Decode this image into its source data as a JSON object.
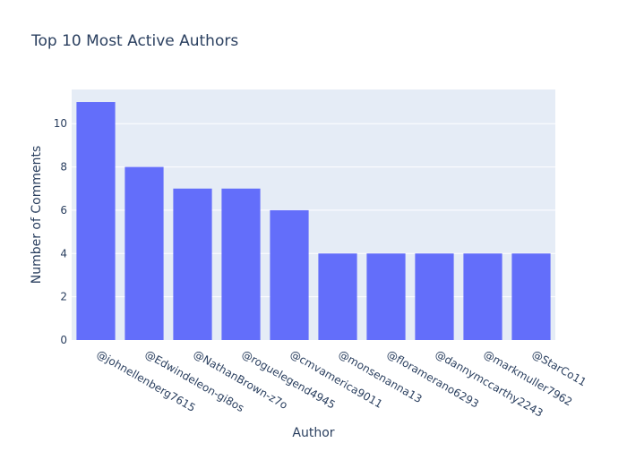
{
  "chart_data": {
    "type": "bar",
    "title": "Top 10 Most Active Authors",
    "xlabel": "Author",
    "ylabel": "Number of Comments",
    "categories": [
      "@johnellenberg7615",
      "@Edwindeleon-gi8os",
      "@NathanBrown-z7o",
      "@roguelegend4945",
      "@cmvamerica9011",
      "@monsenanna13",
      "@floramerano6293",
      "@dannymccarthy2243",
      "@markmuller7962",
      "@StarCo11"
    ],
    "values": [
      11,
      8,
      7,
      7,
      6,
      4,
      4,
      4,
      4,
      4
    ],
    "ylim": [
      0,
      11.58
    ],
    "yticks": [
      0,
      2,
      4,
      6,
      8,
      10
    ],
    "grid": true,
    "legend": "none",
    "colors": {
      "bar": "#636efa",
      "plot_background": "#e5ecf6",
      "grid": "#ffffff",
      "text": "#2a3f5f"
    }
  }
}
